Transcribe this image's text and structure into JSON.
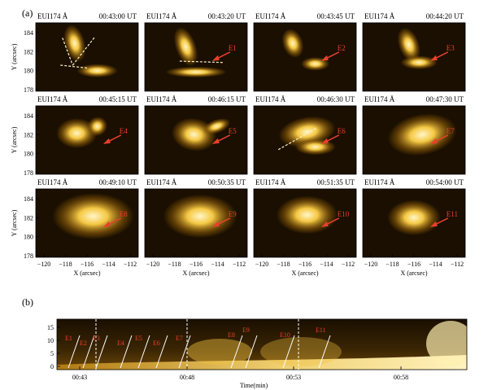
{
  "panel_a": {
    "label": "(a)",
    "instrument": "EUI174 Å",
    "frames": [
      {
        "time": "00:43:00 UT",
        "event": ""
      },
      {
        "time": "00:43:20 UT",
        "event": "E1"
      },
      {
        "time": "00:43:45 UT",
        "event": "E2"
      },
      {
        "time": "00:44:20 UT",
        "event": "E3"
      },
      {
        "time": "00:45:15 UT",
        "event": "E4"
      },
      {
        "time": "00:46:15 UT",
        "event": "E5"
      },
      {
        "time": "00:46:30 UT",
        "event": "E6"
      },
      {
        "time": "00:47:30 UT",
        "event": "E7"
      },
      {
        "time": "00:49:10 UT",
        "event": "E8"
      },
      {
        "time": "00:50:35 UT",
        "event": "E9"
      },
      {
        "time": "00:51:35 UT",
        "event": "E10"
      },
      {
        "time": "00:54:00 UT",
        "event": "E11"
      }
    ],
    "yaxis_label": "Y (arcsec)",
    "yticks": [
      "184",
      "182",
      "180",
      "178"
    ],
    "xaxis_label": "X (arcsec)",
    "xticks": [
      "−120",
      "−118",
      "−116",
      "−114",
      "−112"
    ]
  },
  "panel_b": {
    "label": "(b)",
    "yticks": [
      "15",
      "10",
      "5",
      "0"
    ],
    "xticks": [
      "00:43",
      "00:48",
      "00:53",
      "00:58"
    ],
    "xaxis_label": "Time(min)",
    "events": [
      "E1",
      "E2",
      "E3",
      "E4",
      "E5",
      "E6",
      "E7",
      "E8",
      "E9",
      "E10",
      "E11"
    ]
  },
  "colors": {
    "map_dark": "#1a0f00",
    "map_mid": "#8a5a08",
    "map_bright": "#f5c843",
    "map_hot": "#fff6c8",
    "annotation": "#e8402a"
  }
}
